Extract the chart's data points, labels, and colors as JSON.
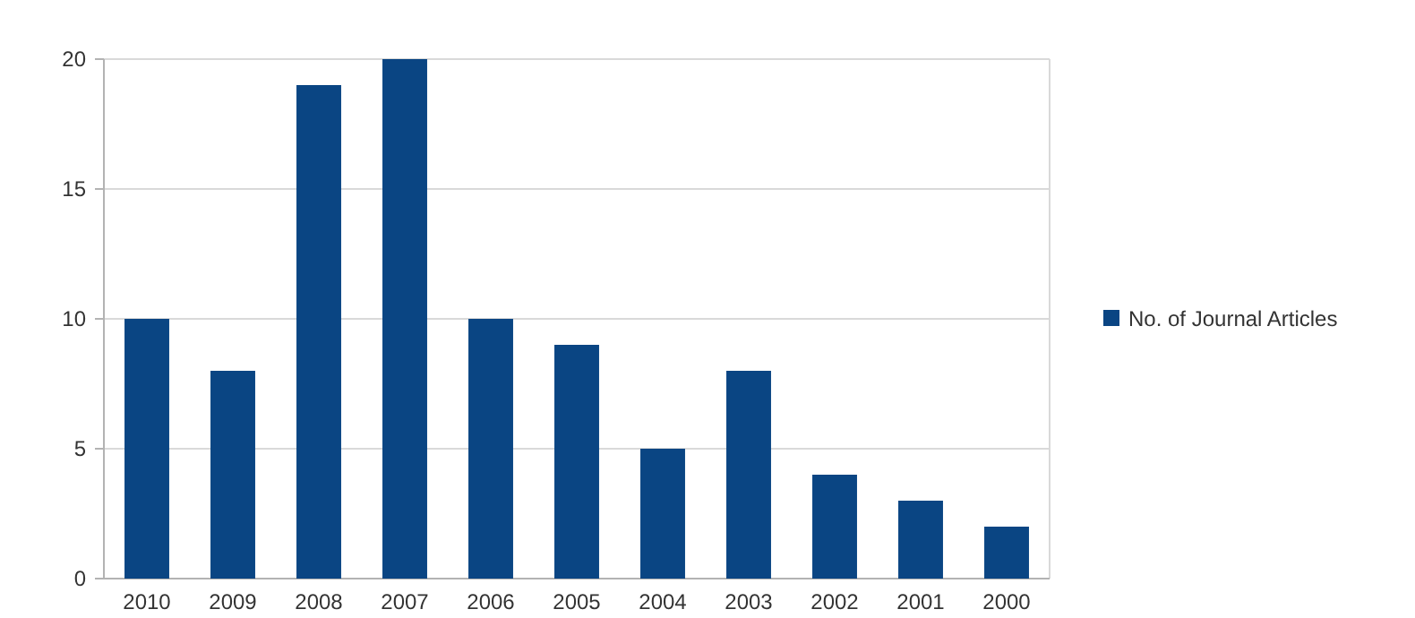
{
  "chart_data": {
    "type": "bar",
    "categories": [
      "2010",
      "2009",
      "2008",
      "2007",
      "2006",
      "2005",
      "2004",
      "2003",
      "2002",
      "2001",
      "2000"
    ],
    "series": [
      {
        "name": "No. of Journal Articles",
        "color": "#0a4583",
        "values": [
          10,
          8,
          19,
          20,
          10,
          9,
          5,
          8,
          4,
          3,
          2
        ]
      }
    ],
    "ylim": [
      0,
      20
    ],
    "yticks": [
      0,
      5,
      10,
      15,
      20
    ],
    "grid": "y",
    "legend": "right"
  }
}
